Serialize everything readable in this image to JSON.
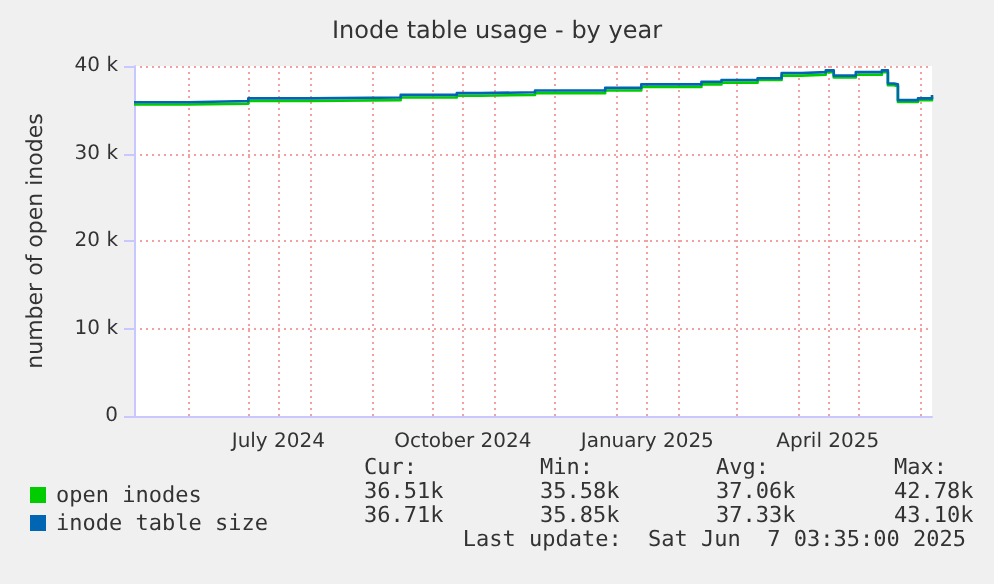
{
  "chart_data": {
    "type": "step",
    "title": "Inode table usage - by year",
    "ylabel": "number of open inodes",
    "xlim": [
      "2024-05-05",
      "2025-06-07"
    ],
    "xticks": [
      {
        "value": "2024-06-01",
        "label": null
      },
      {
        "value": "2024-07-01",
        "label": null
      },
      {
        "value": "2024-07-16",
        "label": "July 2024"
      },
      {
        "value": "2024-08-01",
        "label": null
      },
      {
        "value": "2024-09-01",
        "label": null
      },
      {
        "value": "2024-10-01",
        "label": null
      },
      {
        "value": "2024-10-16",
        "label": "October 2024"
      },
      {
        "value": "2024-11-01",
        "label": null
      },
      {
        "value": "2024-12-01",
        "label": null
      },
      {
        "value": "2025-01-01",
        "label": null
      },
      {
        "value": "2025-01-16",
        "label": "January 2025"
      },
      {
        "value": "2025-02-01",
        "label": null
      },
      {
        "value": "2025-03-01",
        "label": null
      },
      {
        "value": "2025-04-01",
        "label": null
      },
      {
        "value": "2025-04-16",
        "label": "April 2025"
      },
      {
        "value": "2025-05-01",
        "label": null
      },
      {
        "value": "2025-06-01",
        "label": null
      }
    ],
    "ylim": [
      0,
      40000
    ],
    "yticks": [
      {
        "value": 0,
        "label": "0"
      },
      {
        "value": 10000,
        "label": "10 k"
      },
      {
        "value": 20000,
        "label": "20 k"
      },
      {
        "value": 30000,
        "label": "30 k"
      },
      {
        "value": 40000,
        "label": "40 k"
      }
    ],
    "x": [
      "2024-05-05",
      "2024-06-01",
      "2024-07-01",
      "2024-08-01",
      "2024-09-15",
      "2024-10-13",
      "2024-10-25",
      "2024-11-21",
      "2024-12-26",
      "2025-01-13",
      "2025-02-12",
      "2025-02-22",
      "2025-03-12",
      "2025-03-24",
      "2025-04-03",
      "2025-04-15",
      "2025-04-19",
      "2025-04-30",
      "2025-05-13",
      "2025-05-16",
      "2025-05-19",
      "2025-05-21",
      "2025-05-31",
      "2025-06-07"
    ],
    "series": [
      {
        "name": "open inodes",
        "color": "#00cc00",
        "values": [
          35600,
          35700,
          36000,
          36100,
          36400,
          36600,
          36700,
          36900,
          37200,
          37600,
          37900,
          38100,
          38400,
          38900,
          39000,
          39300,
          38700,
          39000,
          39300,
          37800,
          37700,
          35900,
          36100,
          36500
        ]
      },
      {
        "name": "inode table size",
        "color": "#0066b3",
        "values": [
          35850,
          36000,
          36300,
          36400,
          36700,
          36900,
          37000,
          37200,
          37500,
          37900,
          38200,
          38400,
          38600,
          39200,
          39300,
          39500,
          38900,
          39300,
          39500,
          38000,
          37900,
          36100,
          36300,
          36700
        ]
      }
    ],
    "grid": true,
    "legend": "bottom left",
    "annotations": [
      "Cur:",
      "Min:",
      "Avg:",
      "Max:",
      "36.51k",
      "35.58k",
      "37.06k",
      "42.78k",
      "36.71k",
      "35.85k",
      "37.33k",
      "43.10k",
      "Last update:  Sat Jun  7 03:35:00 2025"
    ]
  }
}
